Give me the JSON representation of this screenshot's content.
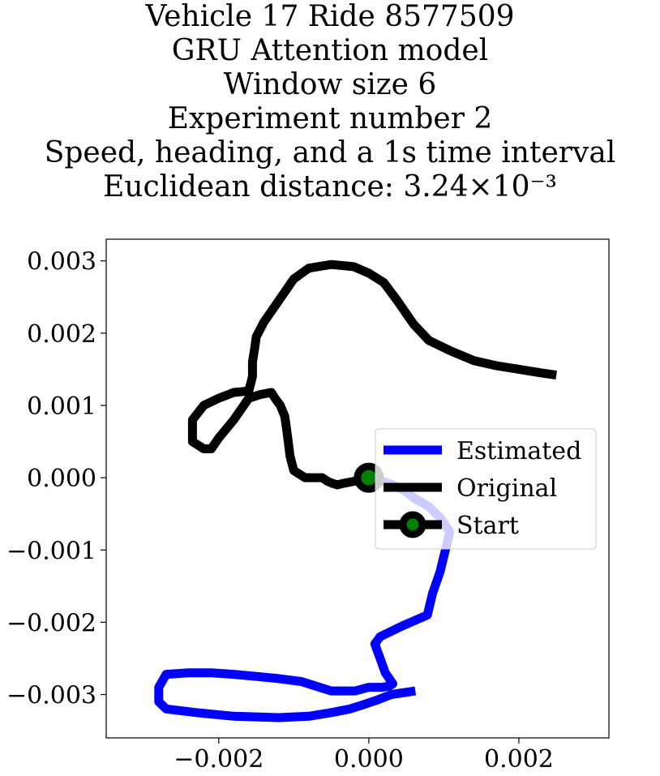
{
  "chart_data": {
    "type": "line",
    "title_lines": [
      "Vehicle 17 Ride 8577509",
      "GRU Attention model",
      "Window size 6",
      "Experiment number 2",
      "Speed, heading, and a 1s time interval",
      "Euclidean distance: 3.24×10⁻³"
    ],
    "xlim": [
      -0.0035,
      0.0032
    ],
    "ylim": [
      -0.0036,
      0.0033
    ],
    "x_ticks": [
      -0.002,
      0.0,
      0.002
    ],
    "x_tick_labels": [
      "−0.002",
      "0.000",
      "0.002"
    ],
    "y_ticks": [
      0.003,
      0.002,
      0.001,
      0.0,
      -0.001,
      -0.002,
      -0.003
    ],
    "y_tick_labels": [
      "0.003",
      "0.002",
      "0.001",
      "0.000",
      "−0.001",
      "−0.002",
      "−0.003"
    ],
    "grid": false,
    "legend_position": "center-right",
    "series": [
      {
        "name": "Estimated",
        "color": "#0000ff",
        "x": [
          0.0,
          0.00018,
          0.00032,
          0.00048,
          0.0006,
          0.0008,
          0.00095,
          0.00108,
          0.00102,
          0.00095,
          0.00085,
          0.00078,
          0.00045,
          0.00015,
          8e-05,
          0.00015,
          0.00022,
          0.00032,
          0.00028,
          0.00018,
          0.0,
          -0.00018,
          -0.0005,
          -0.0009,
          -0.0012,
          -0.0015,
          -0.0018,
          -0.0021,
          -0.0024,
          -0.0027,
          -0.0028,
          -0.0028,
          -0.0027,
          -0.0023,
          -0.0018,
          -0.0012,
          -0.0008,
          -0.0005,
          -0.00025,
          -0.0001,
          0.0001,
          0.0003,
          0.00062
        ],
        "y": [
          0.0,
          -5e-05,
          -0.0001,
          -0.00018,
          -0.00028,
          -0.0004,
          -0.00055,
          -0.00075,
          -0.001,
          -0.0013,
          -0.0016,
          -0.0019,
          -0.00205,
          -0.0022,
          -0.0023,
          -0.0025,
          -0.0027,
          -0.00285,
          -0.00288,
          -0.0029,
          -0.0029,
          -0.00295,
          -0.00295,
          -0.00282,
          -0.00278,
          -0.00275,
          -0.00272,
          -0.0027,
          -0.0027,
          -0.00272,
          -0.0029,
          -0.0031,
          -0.0032,
          -0.00325,
          -0.0033,
          -0.00332,
          -0.0033,
          -0.00325,
          -0.0032,
          -0.00315,
          -0.00308,
          -0.003,
          -0.00295
        ]
      },
      {
        "name": "Original",
        "color": "#000000",
        "x": [
          0.0,
          -0.0002,
          -0.00035,
          -0.00042,
          -0.00048,
          -0.00055,
          -0.00062,
          -0.0007,
          -0.00085,
          -0.001,
          -0.00105,
          -0.00108,
          -0.0011,
          -0.00112,
          -0.00118,
          -0.00125,
          -0.0013,
          -0.00145,
          -0.0016,
          -0.0018,
          -0.002,
          -0.0021,
          -0.0022,
          -0.00235,
          -0.00235,
          -0.0022,
          -0.002,
          -0.0018,
          -0.0016,
          -0.00155,
          -0.00155,
          -0.00152,
          -0.0015,
          -0.0014,
          -0.0012,
          -0.001,
          -0.0008,
          -0.0005,
          -0.0002,
          0.0,
          0.0002,
          0.00038,
          0.0006,
          0.0008,
          0.0011,
          0.0014,
          0.0017,
          0.002,
          0.0023,
          0.0025
        ],
        "y": [
          0.0,
          -5e-05,
          -8e-05,
          -0.0001,
          -8e-05,
          -5e-05,
          0.0,
          0.0,
          0.0,
          0.0001,
          0.0003,
          0.00055,
          0.0007,
          0.00085,
          0.001,
          0.0011,
          0.00118,
          0.00115,
          0.0011,
          0.0008,
          0.00055,
          0.0004,
          0.0004,
          0.0005,
          0.0008,
          0.001,
          0.0011,
          0.00118,
          0.0012,
          0.0014,
          0.0016,
          0.0018,
          0.00195,
          0.00215,
          0.00245,
          0.00275,
          0.0029,
          0.00295,
          0.00292,
          0.00283,
          0.0027,
          0.00245,
          0.00212,
          0.0019,
          0.00175,
          0.00162,
          0.00155,
          0.0015,
          0.00145,
          0.00142
        ]
      },
      {
        "name": "Start",
        "color": "#000000",
        "marker_face": "#008000",
        "x": [
          0.0
        ],
        "y": [
          0.0
        ]
      }
    ]
  }
}
